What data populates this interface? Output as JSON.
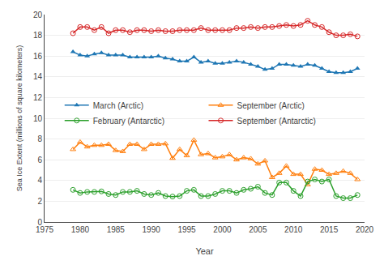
{
  "chart_data": {
    "type": "line",
    "xlabel": "Year",
    "ylabel": "Sea Ice Extent (millions of square kilometers)",
    "x": [
      1979,
      1980,
      1981,
      1982,
      1983,
      1984,
      1985,
      1986,
      1987,
      1988,
      1989,
      1990,
      1991,
      1992,
      1993,
      1994,
      1995,
      1996,
      1997,
      1998,
      1999,
      2000,
      2001,
      2002,
      2003,
      2004,
      2005,
      2006,
      2007,
      2008,
      2009,
      2010,
      2011,
      2012,
      2013,
      2014,
      2015,
      2016,
      2017,
      2018,
      2019
    ],
    "series": [
      {
        "name": "March (Arctic)",
        "marker": "triangle-up",
        "values": [
          16.4,
          16.1,
          16.0,
          16.2,
          16.3,
          16.1,
          16.1,
          16.1,
          15.9,
          15.9,
          15.9,
          15.9,
          16.0,
          15.8,
          15.7,
          15.5,
          15.5,
          15.9,
          15.4,
          15.5,
          15.3,
          15.3,
          15.4,
          15.5,
          15.4,
          15.2,
          15.0,
          14.7,
          14.8,
          15.2,
          15.2,
          15.1,
          15.0,
          15.2,
          15.1,
          14.8,
          14.5,
          14.4,
          14.4,
          14.5,
          14.8
        ]
      },
      {
        "name": "September (Arctic)",
        "marker": "triangle-up-open",
        "values": [
          7.0,
          7.7,
          7.25,
          7.4,
          7.4,
          7.5,
          6.9,
          6.8,
          7.5,
          7.5,
          7.0,
          7.5,
          7.5,
          7.55,
          6.15,
          7.0,
          6.4,
          7.9,
          6.5,
          6.6,
          6.2,
          6.3,
          6.5,
          6.0,
          6.2,
          6.1,
          5.6,
          5.9,
          4.3,
          4.7,
          5.4,
          4.6,
          4.6,
          3.6,
          5.1,
          5.0,
          4.6,
          4.7,
          4.9,
          4.7,
          4.1
        ]
      },
      {
        "name": "February (Antarctic)",
        "marker": "circle-open",
        "values": [
          3.1,
          2.8,
          2.9,
          2.9,
          2.95,
          2.7,
          2.6,
          2.9,
          2.9,
          3.0,
          2.7,
          2.6,
          2.8,
          2.5,
          2.45,
          2.5,
          3.0,
          3.1,
          2.5,
          2.5,
          2.7,
          3.0,
          3.0,
          2.8,
          3.1,
          3.2,
          3.4,
          2.8,
          2.6,
          3.8,
          3.8,
          3.0,
          2.5,
          3.9,
          4.1,
          3.9,
          4.1,
          2.5,
          2.3,
          2.3,
          2.6
        ]
      },
      {
        "name": "September (Antarctic)",
        "marker": "circle-open",
        "values": [
          18.2,
          18.8,
          18.8,
          18.5,
          18.8,
          18.2,
          18.5,
          18.5,
          18.3,
          18.5,
          18.5,
          18.4,
          18.5,
          18.4,
          18.4,
          18.5,
          18.5,
          18.5,
          18.7,
          18.5,
          18.5,
          18.5,
          18.5,
          18.7,
          18.7,
          18.8,
          18.7,
          18.8,
          18.8,
          18.9,
          19.0,
          18.9,
          19.0,
          19.4,
          19.0,
          18.8,
          18.3,
          18.0,
          18.0,
          18.1,
          17.9
        ]
      }
    ],
    "xlim": [
      1975,
      2020
    ],
    "ylim": [
      0,
      20
    ],
    "xticks": [
      1975,
      1980,
      1985,
      1990,
      1995,
      2000,
      2005,
      2010,
      2015,
      2020
    ],
    "yticks": [
      0,
      2,
      4,
      6,
      8,
      10,
      12,
      14,
      16,
      18,
      20
    ],
    "grid": "y",
    "legend": "left"
  }
}
